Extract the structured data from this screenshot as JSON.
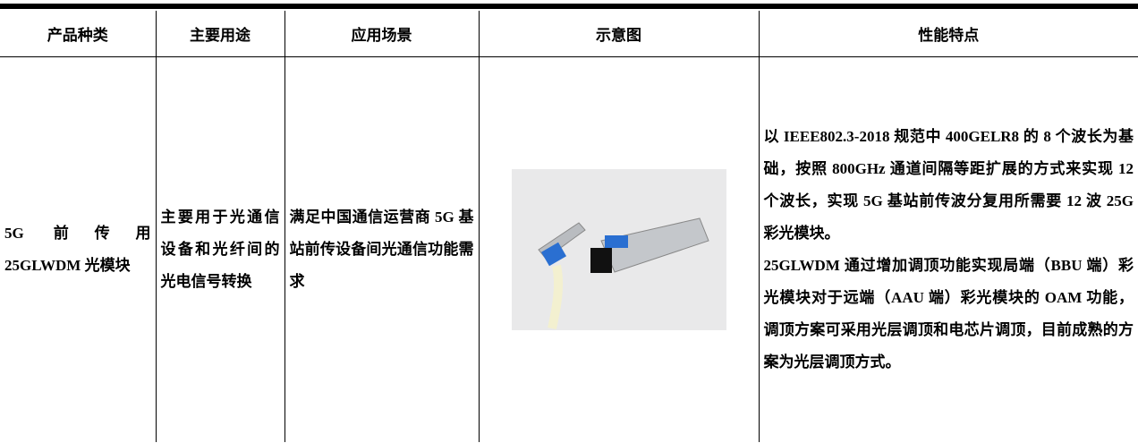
{
  "table": {
    "header": [
      "产品种类",
      "主要用途",
      "应用场景",
      "示意图",
      "性能特点"
    ],
    "rows": [
      [
        [
          "5G 前传用 25GLWDM 光模块"
        ],
        [
          "主要用于光通信设备和光纤间的光电信号转换"
        ],
        [
          "满足中国通信运营商 5G 基站前传设备间光通信功能需求"
        ],
        [],
        [
          "以 IEEE802.3-2018 规范中 400GELR8 的 8 个波长为基础，按照 800GHz 通道间隔等距扩展的方式来实现 12 个波长，实现 5G 基站前传波分复用所需要 12 波 25G 彩光模块。",
          "25GLWDM 通过增加调顶功能实现局端（BBU 端）彩光模块对于远端（AAU 端）彩光模块的 OAM 功能，调顶方案可采用光层调顶和电芯片调顶，目前成熟的方案为光层调顶方式。"
        ]
      ]
    ]
  }
}
